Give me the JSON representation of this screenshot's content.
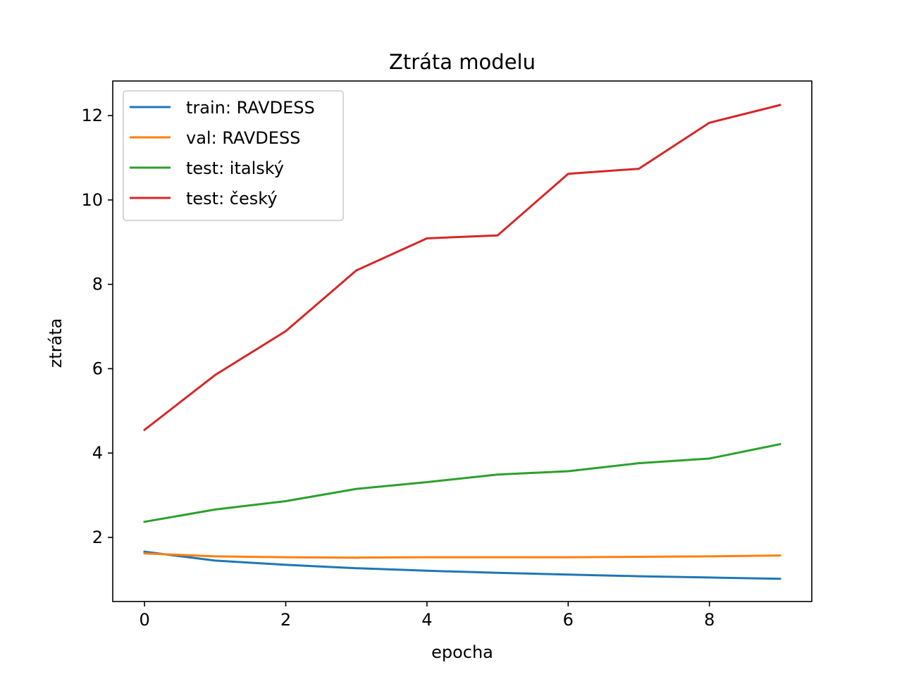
{
  "chart_data": {
    "type": "line",
    "title": "Ztráta modelu",
    "xlabel": "epocha",
    "ylabel": "ztráta",
    "xlim": [
      -0.45,
      9.45
    ],
    "ylim": [
      0.48,
      12.82
    ],
    "x_ticks": [
      "0",
      "2",
      "4",
      "6",
      "8"
    ],
    "y_ticks": [
      "2",
      "4",
      "6",
      "8",
      "10",
      "12"
    ],
    "grid": false,
    "legend_position": "upper left",
    "x": [
      0,
      1,
      2,
      3,
      4,
      5,
      6,
      7,
      8,
      9
    ],
    "series": [
      {
        "name": "train: RAVDESS",
        "color": "#1f77b4",
        "values": [
          1.66,
          1.45,
          1.35,
          1.27,
          1.21,
          1.16,
          1.12,
          1.08,
          1.05,
          1.02
        ]
      },
      {
        "name": "val: RAVDESS",
        "color": "#ff7f0e",
        "values": [
          1.62,
          1.55,
          1.53,
          1.52,
          1.53,
          1.53,
          1.53,
          1.54,
          1.55,
          1.57
        ]
      },
      {
        "name": "test: italský",
        "color": "#2ca02c",
        "values": [
          2.37,
          2.66,
          2.86,
          3.15,
          3.31,
          3.49,
          3.57,
          3.76,
          3.87,
          4.21
        ]
      },
      {
        "name": "test: český",
        "color": "#d62728",
        "values": [
          4.55,
          5.85,
          6.89,
          8.33,
          9.09,
          9.16,
          10.62,
          10.74,
          11.83,
          12.25
        ]
      }
    ]
  }
}
